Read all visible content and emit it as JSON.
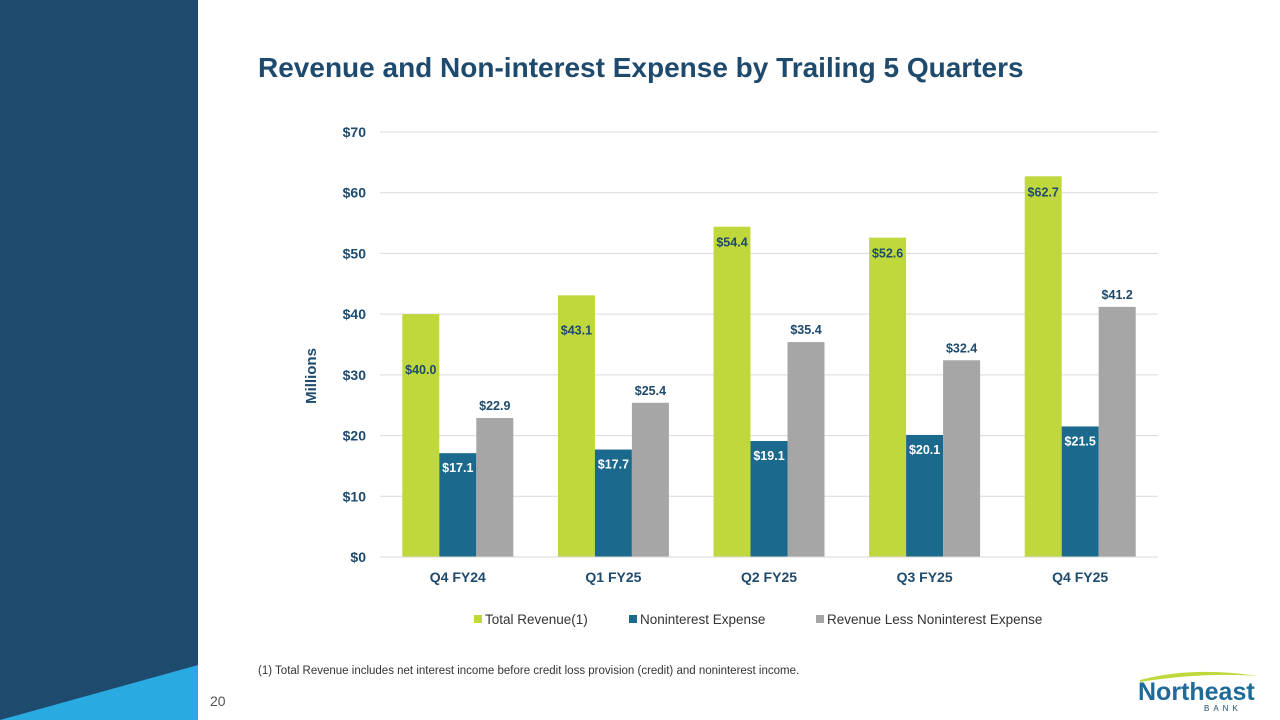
{
  "slide": {
    "title": "Revenue and Non-interest Expense by Trailing 5 Quarters",
    "page_number": "20",
    "footnote": "(1) Total Revenue includes net interest income before credit loss provision (credit) and noninterest income.",
    "logo_name": "Northeast",
    "logo_sub": "BANK"
  },
  "colors": {
    "sidebar": "#1e4a6d",
    "accent": "#29abe2",
    "total_revenue": "#c1d83c",
    "noninterest_expense": "#1b6a8e",
    "revenue_less": "#a6a6a6",
    "label_dark": "#1e4a6d",
    "label_light": "#ffffff"
  },
  "chart_data": {
    "type": "bar",
    "title": "Revenue and Non-interest Expense by Trailing 5 Quarters",
    "xlabel": "",
    "ylabel": "Millions",
    "ylim": [
      0,
      70
    ],
    "yticks": [
      0,
      10,
      20,
      30,
      40,
      50,
      60,
      70
    ],
    "ytick_labels": [
      "$0",
      "$10",
      "$20",
      "$30",
      "$40",
      "$50",
      "$60",
      "$70"
    ],
    "grid": true,
    "legend_position": "bottom",
    "categories": [
      "Q4 FY24",
      "Q1 FY25",
      "Q2 FY25",
      "Q3 FY25",
      "Q4 FY25"
    ],
    "series": [
      {
        "name": "Total Revenue(1)",
        "color": "#c1d83c",
        "values": [
          40.0,
          43.1,
          54.4,
          52.6,
          62.7
        ],
        "labels": [
          "$40.0",
          "$43.1",
          "$54.4",
          "$52.6",
          "$62.7"
        ]
      },
      {
        "name": "Noninterest Expense",
        "color": "#1b6a8e",
        "values": [
          17.1,
          17.7,
          19.1,
          20.1,
          21.5
        ],
        "labels": [
          "$17.1",
          "$17.7",
          "$19.1",
          "$20.1",
          "$21.5"
        ]
      },
      {
        "name": "Revenue Less Noninterest Expense",
        "color": "#a6a6a6",
        "values": [
          22.9,
          25.4,
          35.4,
          32.4,
          41.2
        ],
        "labels": [
          "$22.9",
          "$25.4",
          "$35.4",
          "$32.4",
          "$41.2"
        ]
      }
    ]
  }
}
